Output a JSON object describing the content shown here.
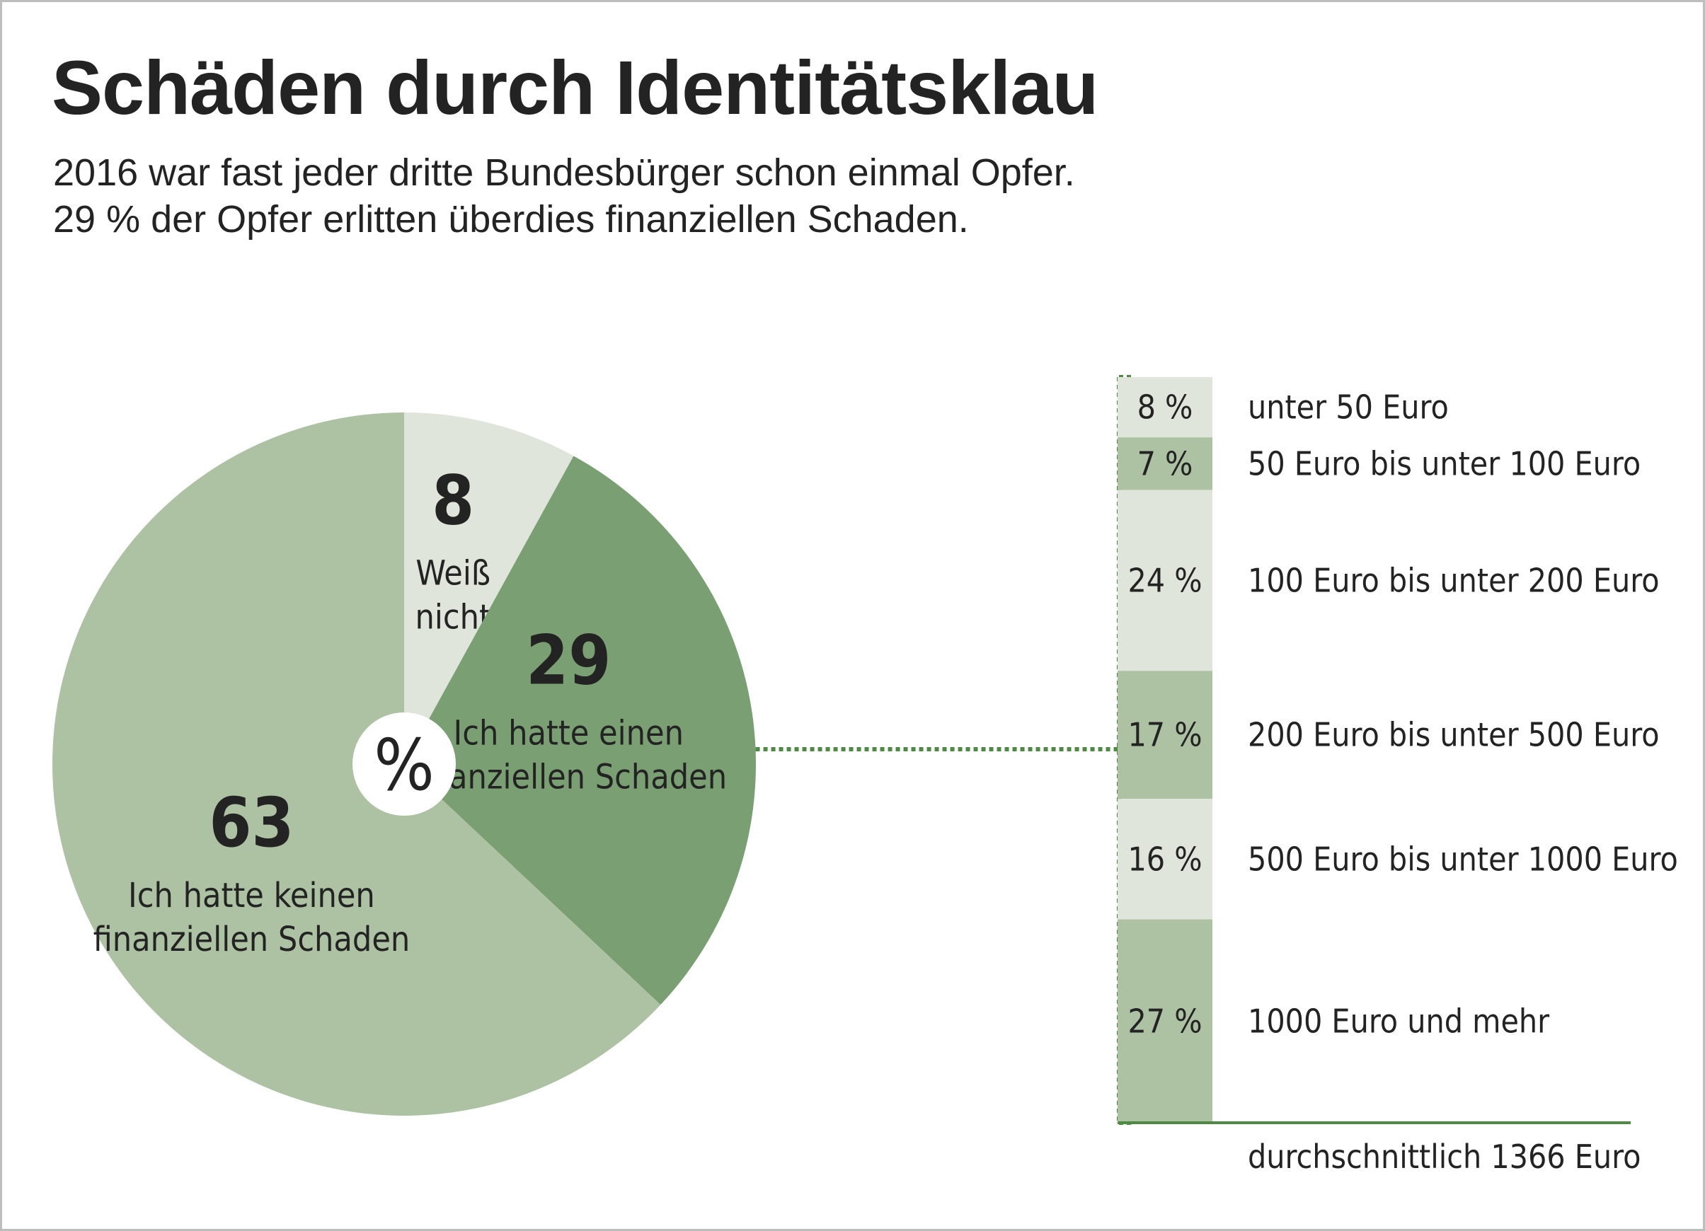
{
  "header": {
    "title": "Schäden durch Identitätsklau",
    "subtitle_line1": "2016 war fast jeder dritte Bundesbürger schon einmal Opfer.",
    "subtitle_line2": "29 % der Opfer erlitten überdies finanziellen Schaden."
  },
  "colors": {
    "light": "#dfe5da",
    "medium": "#adc2a3",
    "dark": "#7a9f72",
    "line": "#4f8a45",
    "text": "#232323"
  },
  "chart_data": [
    {
      "type": "pie",
      "center_label": "%",
      "slices": [
        {
          "value": 8,
          "label_lines": [
            "Weiß",
            "nicht"
          ],
          "color": "#dfe5da"
        },
        {
          "value": 29,
          "label_lines": [
            "Ich hatte einen",
            "finanziellen Schaden"
          ],
          "color": "#7a9f72"
        },
        {
          "value": 63,
          "label_lines": [
            "Ich hatte keinen",
            "finanziellen Schaden"
          ],
          "color": "#adc2a3"
        }
      ]
    },
    {
      "type": "bar",
      "stacked": true,
      "unit": "%",
      "segments": [
        {
          "value": 8,
          "value_label": "8 %",
          "category": "unter 50 Euro",
          "color": "#dfe5da"
        },
        {
          "value": 7,
          "value_label": "7 %",
          "category": "50 Euro bis unter 100 Euro",
          "color": "#adc2a3"
        },
        {
          "value": 24,
          "value_label": "24 %",
          "category": "100 Euro bis unter 200 Euro",
          "color": "#dfe5da"
        },
        {
          "value": 17,
          "value_label": "17 %",
          "category": "200 Euro bis unter 500 Euro",
          "color": "#adc2a3"
        },
        {
          "value": 16,
          "value_label": "16 %",
          "category": "500 Euro bis unter 1000 Euro",
          "color": "#dfe5da"
        },
        {
          "value": 27,
          "value_label": "27 %",
          "category": "1000 Euro und mehr",
          "color": "#adc2a3"
        }
      ],
      "footnote": "durchschnittlich 1366 Euro"
    }
  ]
}
